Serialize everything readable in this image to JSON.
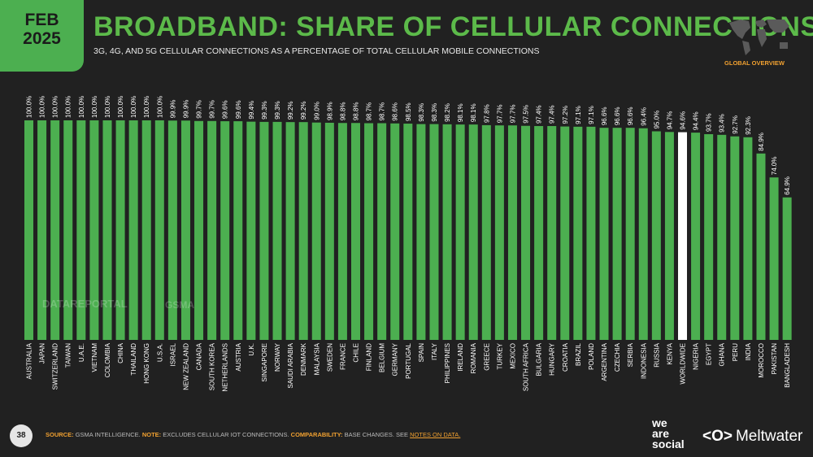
{
  "badge": {
    "month": "FEB",
    "year": "2025"
  },
  "header": {
    "title": "BROADBAND: SHARE OF CELLULAR CONNECTIONS",
    "subtitle": "3G, 4G, AND 5G CELLULAR CONNECTIONS AS A PERCENTAGE OF TOTAL CELLULAR MOBILE CONNECTIONS",
    "region": "GLOBAL OVERVIEW"
  },
  "watermarks": {
    "left": "DATAREPORTAL",
    "right": "GSMA"
  },
  "footer": {
    "page": "38",
    "source_label": "SOURCE:",
    "source_text": "GSMA INTELLIGENCE.",
    "note_label": "NOTE:",
    "note_text": "EXCLUDES CELLULAR IOT CONNECTIONS.",
    "comp_label": "COMPARABILITY:",
    "comp_text": "BASE CHANGES. SEE",
    "link_text": "NOTES ON DATA."
  },
  "brands": {
    "we_are_social": "we are social",
    "meltwater": "Meltwater"
  },
  "colors": {
    "bar": "#4caf50",
    "highlight": "#ffffff",
    "background": "#212121",
    "accent": "#f0a030"
  },
  "chart_data": {
    "type": "bar",
    "orientation": "vertical",
    "ylim": [
      0,
      100
    ],
    "highlight": "WORLDWIDE",
    "categories": [
      "AUSTRALIA",
      "JAPAN",
      "SWITZERLAND",
      "TAIWAN",
      "U.A.E.",
      "VIETNAM",
      "COLOMBIA",
      "CHINA",
      "THAILAND",
      "HONG KONG",
      "U.S.A.",
      "ISRAEL",
      "NEW ZEALAND",
      "CANADA",
      "SOUTH KOREA",
      "NETHERLANDS",
      "AUSTRIA",
      "U.K.",
      "SINGAPORE",
      "NORWAY",
      "SAUDI ARABIA",
      "DENMARK",
      "MALAYSIA",
      "SWEDEN",
      "FRANCE",
      "CHILE",
      "FINLAND",
      "BELGIUM",
      "GERMANY",
      "PORTUGAL",
      "SPAIN",
      "ITALY",
      "PHILIPPINES",
      "IRELAND",
      "ROMANIA",
      "GREECE",
      "TURKEY",
      "MEXICO",
      "SOUTH AFRICA",
      "BULGARIA",
      "HUNGARY",
      "CROATIA",
      "BRAZIL",
      "POLAND",
      "ARGENTINA",
      "CZECHIA",
      "SERBIA",
      "INDONESIA",
      "RUSSIA",
      "KENYA",
      "WORLDWIDE",
      "NIGERIA",
      "EGYPT",
      "GHANA",
      "PERU",
      "INDIA",
      "MOROCCO",
      "PAKISTAN",
      "BANGLADESH"
    ],
    "values": [
      100.0,
      100.0,
      100.0,
      100.0,
      100.0,
      100.0,
      100.0,
      100.0,
      100.0,
      100.0,
      100.0,
      99.9,
      99.9,
      99.7,
      99.7,
      99.6,
      99.6,
      99.4,
      99.3,
      99.3,
      99.2,
      99.2,
      99.0,
      98.9,
      98.8,
      98.8,
      98.7,
      98.7,
      98.6,
      98.5,
      98.3,
      98.3,
      98.2,
      98.1,
      98.1,
      97.8,
      97.7,
      97.7,
      97.5,
      97.4,
      97.4,
      97.2,
      97.1,
      97.1,
      96.6,
      96.6,
      96.6,
      96.4,
      95.0,
      94.7,
      94.6,
      94.4,
      93.7,
      93.4,
      92.7,
      92.3,
      84.9,
      74.0,
      64.9
    ],
    "labels": [
      "100.0%",
      "100.0%",
      "100.0%",
      "100.0%",
      "100.0%",
      "100.0%",
      "100.0%",
      "100.0%",
      "100.0%",
      "100.0%",
      "100.0%",
      "99.9%",
      "99.9%",
      "99.7%",
      "99.7%",
      "99.6%",
      "99.6%",
      "99.4%",
      "99.3%",
      "99.3%",
      "99.2%",
      "99.2%",
      "99.0%",
      "98.9%",
      "98.8%",
      "98.8%",
      "98.7%",
      "98.7%",
      "98.6%",
      "98.5%",
      "98.3%",
      "98.3%",
      "98.2%",
      "98.1%",
      "98.1%",
      "97.8%",
      "97.7%",
      "97.7%",
      "97.5%",
      "97.4%",
      "97.4%",
      "97.2%",
      "97.1%",
      "97.1%",
      "96.6%",
      "96.6%",
      "96.6%",
      "96.4%",
      "95.0%",
      "94.7%",
      "94.6%",
      "94.4%",
      "93.7%",
      "93.4%",
      "92.7%",
      "92.3%",
      "84.9%",
      "74.0%",
      "64.9%"
    ]
  }
}
